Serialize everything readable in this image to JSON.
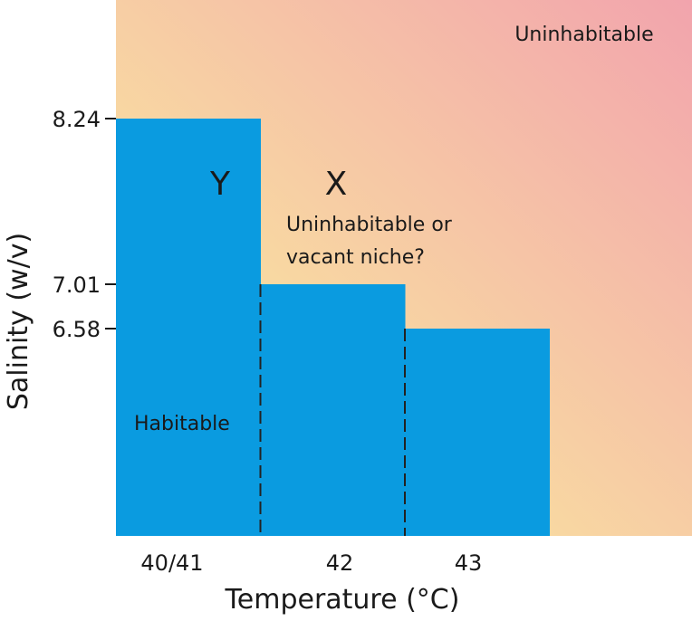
{
  "chart_data": {
    "type": "bar",
    "title": "",
    "xlabel": "Temperature (°C)",
    "ylabel": "Salinity (w/v)",
    "categories": [
      "40/41",
      "42",
      "43"
    ],
    "values": [
      8.24,
      7.01,
      6.58
    ],
    "y_tick_labels": [
      "8.24",
      "7.01",
      "6.58"
    ],
    "annotations": {
      "uninhabitable": "Uninhabitable",
      "niche_line1": "Uninhabitable or",
      "niche_line2": "vacant niche?",
      "y_marker": "Y",
      "x_marker": "X",
      "habitable": "Habitable"
    },
    "colors": {
      "bar": "#0a9be0",
      "gradient_start": "#f9e0a0",
      "gradient_end": "#f2a4ad",
      "divider": "#222222"
    }
  }
}
